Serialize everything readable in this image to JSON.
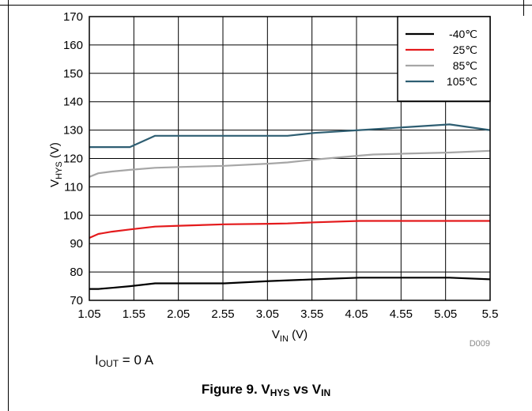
{
  "chart_data": {
    "type": "line",
    "xlabel": {
      "main": "V",
      "sub": "IN",
      "unit": " (V)"
    },
    "ylabel": {
      "main": "V",
      "sub": "HYS",
      "unit": " (V)"
    },
    "xlim": [
      1.05,
      5.5
    ],
    "ylim": [
      70,
      170
    ],
    "xticks": [
      "1.05",
      "1.55",
      "2.05",
      "2.55",
      "3.05",
      "3.55",
      "4.05",
      "4.55",
      "5.05",
      "5.5"
    ],
    "yticks": [
      "70",
      "80",
      "90",
      "100",
      "110",
      "120",
      "130",
      "140",
      "150",
      "160",
      "170"
    ],
    "grid": true,
    "legend_position": "top-right",
    "series": [
      {
        "name": "-40℃",
        "color": "#000000",
        "x": [
          1.05,
          1.15,
          1.3,
          1.5,
          1.78,
          2.05,
          2.55,
          3.05,
          3.55,
          4.05,
          4.2,
          4.55,
          5.05,
          5.5
        ],
        "y": [
          74,
          74,
          74.4,
          75,
          76,
          76,
          76,
          76.8,
          77.4,
          78,
          78,
          78,
          78,
          77.4
        ]
      },
      {
        "name": "25℃",
        "color": "#e41a1c",
        "x": [
          1.05,
          1.15,
          1.3,
          1.5,
          1.78,
          2.05,
          2.55,
          3.05,
          3.25,
          3.55,
          4.05,
          4.2,
          4.55,
          5.05,
          5.5
        ],
        "y": [
          92,
          93.4,
          94.2,
          95,
          96,
          96.3,
          96.8,
          97,
          97.1,
          97.5,
          98,
          98,
          98,
          98,
          98
        ]
      },
      {
        "name": "85℃",
        "color": "#a6a6a6",
        "x": [
          1.05,
          1.15,
          1.3,
          1.5,
          1.78,
          2.05,
          2.55,
          3.05,
          3.25,
          3.55,
          4.05,
          4.2,
          4.55,
          5.05,
          5.5
        ],
        "y": [
          113.5,
          114.8,
          115.4,
          116,
          116.7,
          117,
          117.4,
          118.2,
          118.6,
          119.6,
          121,
          121.4,
          121.7,
          122.1,
          122.7
        ]
      },
      {
        "name": "105℃",
        "color": "#2e5e72",
        "x": [
          1.05,
          1.3,
          1.5,
          1.78,
          2.05,
          2.55,
          3.05,
          3.25,
          3.55,
          4.05,
          4.55,
          5.05,
          5.5
        ],
        "y": [
          124,
          124,
          124,
          128,
          128,
          128,
          128,
          128,
          129,
          130,
          131,
          132,
          130
        ]
      }
    ],
    "annotations": [
      "D009"
    ]
  },
  "condition": {
    "main": "I",
    "sub": "OUT",
    "rest": " = 0 A"
  },
  "caption": {
    "prefix": "Figure 9. V",
    "sub1": "HYS",
    "middle": " vs V",
    "sub2": "IN"
  }
}
